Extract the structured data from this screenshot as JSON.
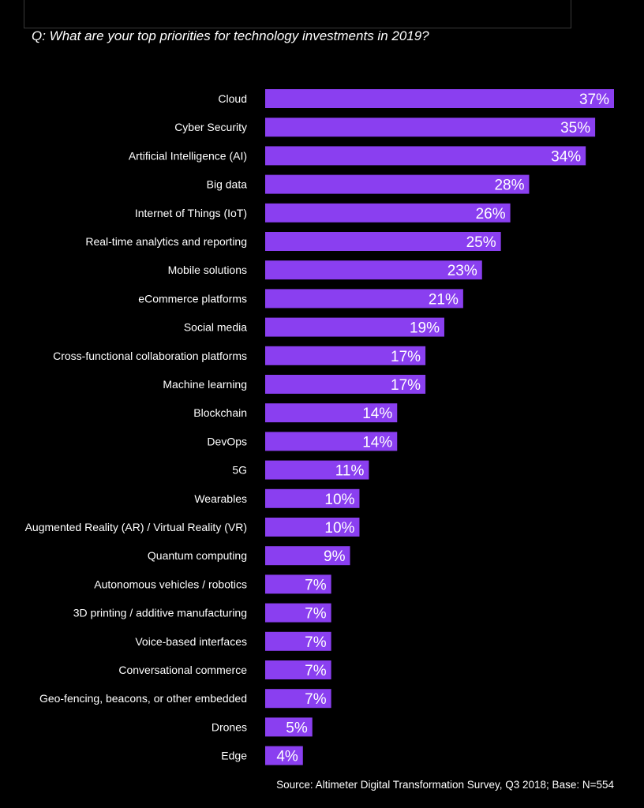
{
  "question": "Q: What are your top priorities for technology investments in 2019?",
  "source": "Source: Altimeter Digital Transformation Survey, Q3 2018; Base: N=554",
  "colors": {
    "background": "#000000",
    "bar": "#8a3ff0",
    "text": "#ffffff"
  },
  "chart_data": {
    "type": "bar",
    "orientation": "horizontal",
    "title": "",
    "xlabel": "",
    "ylabel": "",
    "value_suffix": "%",
    "xlim": [
      0,
      37
    ],
    "grid": false,
    "legend": "none",
    "categories": [
      "Cloud",
      "Cyber Security",
      "Artificial Intelligence (AI)",
      "Big data",
      "Internet of Things (IoT)",
      "Real-time analytics and reporting",
      "Mobile solutions",
      "eCommerce platforms",
      "Social media",
      "Cross-functional collaboration platforms",
      "Machine learning",
      "Blockchain",
      "DevOps",
      "5G",
      "Wearables",
      "Augmented Reality (AR) / Virtual Reality (VR)",
      "Quantum computing",
      "Autonomous vehicles / robotics",
      "3D printing / additive manufacturing",
      "Voice-based interfaces",
      "Conversational commerce",
      "Geo-fencing, beacons, or other embedded",
      "Drones",
      "Edge"
    ],
    "values": [
      37,
      35,
      34,
      28,
      26,
      25,
      23,
      21,
      19,
      17,
      17,
      14,
      14,
      11,
      10,
      10,
      9,
      7,
      7,
      7,
      7,
      7,
      5,
      4
    ],
    "data_labels": [
      "37%",
      "35%",
      "34%",
      "28%",
      "26%",
      "25%",
      "23%",
      "21%",
      "19%",
      "17%",
      "17%",
      "14%",
      "14%",
      "11%",
      "10%",
      "10%",
      "9%",
      "7%",
      "7%",
      "7%",
      "7%",
      "7%",
      "5%",
      "4%"
    ]
  }
}
